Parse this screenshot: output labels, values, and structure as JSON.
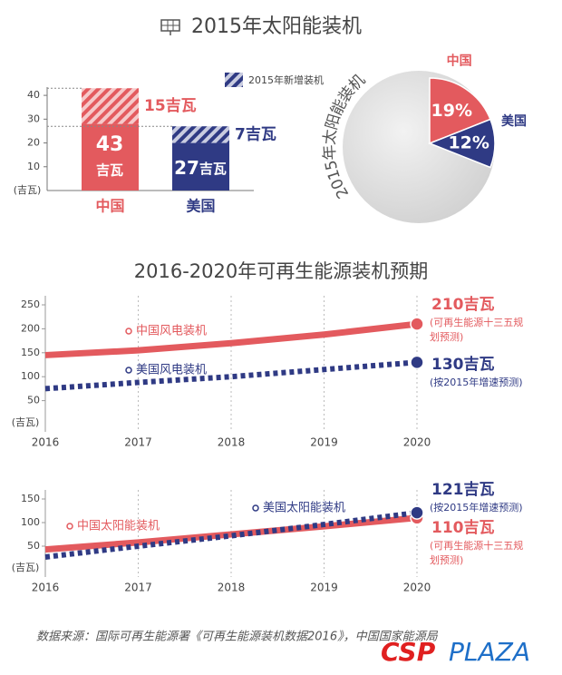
{
  "chart_data": [
    {
      "type": "bar",
      "stacked": true,
      "title": "2015年太阳能装机",
      "categories": [
        "中国",
        "美国"
      ],
      "colors": [
        "#e35a5e",
        "#2f3a84"
      ],
      "series": [
        {
          "values": [
            28,
            20
          ]
        },
        {
          "name": "2015年新增装机",
          "hatched": true,
          "values": [
            15,
            7
          ],
          "value_labels": [
            "15吉瓦",
            "7吉瓦"
          ]
        }
      ],
      "totals": [
        43,
        27
      ],
      "total_unit": "吉瓦",
      "ylabel": "(吉瓦)",
      "ylim": [
        0,
        45
      ],
      "yticks": [
        10,
        20,
        30,
        40
      ]
    },
    {
      "type": "pie",
      "title": "2015年太阳能装机",
      "categories": [
        "中国",
        "美国"
      ],
      "values": [
        19,
        12
      ],
      "value_labels": [
        "19%",
        "12%"
      ],
      "colors": [
        "#e35a5e",
        "#2f3a84"
      ]
    },
    {
      "type": "line",
      "title": "2016-2020年可再生能源装机预期",
      "x": [
        2016,
        2017,
        2018,
        2019,
        2020
      ],
      "xlim": [
        2016,
        2020
      ],
      "xticks": [
        2016,
        2017,
        2018,
        2019,
        2020
      ],
      "ylim": [
        0,
        250
      ],
      "yticks": [
        50,
        100,
        150,
        200,
        250
      ],
      "ylabel": "(吉瓦)",
      "series": [
        {
          "name": "中国风电装机",
          "color": "#e35a5e",
          "style": "solid",
          "values": [
            145,
            155,
            170,
            188,
            210
          ],
          "value_labels": [
            null,
            null,
            null,
            null,
            "210吉瓦"
          ],
          "note": "(可再生能源十三五规划预测)"
        },
        {
          "name": "美国风电装机",
          "color": "#2f3a84",
          "style": "dotted",
          "values": [
            75,
            88,
            100,
            115,
            130
          ],
          "value_labels": [
            null,
            null,
            null,
            null,
            "130吉瓦"
          ],
          "note": "(按2015年增速预测)"
        }
      ]
    },
    {
      "type": "line",
      "x": [
        2016,
        2017,
        2018,
        2019,
        2020
      ],
      "xlim": [
        2016,
        2020
      ],
      "xticks": [
        2016,
        2017,
        2018,
        2019,
        2020
      ],
      "ylim": [
        0,
        150
      ],
      "yticks": [
        50,
        100,
        150
      ],
      "ylabel": "(吉瓦)",
      "series": [
        {
          "name": "中国太阳能装机",
          "color": "#e35a5e",
          "style": "solid",
          "values": [
            43,
            58,
            75,
            92,
            110
          ],
          "value_labels": [
            null,
            null,
            null,
            null,
            "110吉瓦"
          ],
          "note": "(可再生能源十三五规划预测)"
        },
        {
          "name": "美国太阳能装机",
          "color": "#2f3a84",
          "style": "dotted",
          "values": [
            27,
            50,
            72,
            96,
            121
          ],
          "value_labels": [
            null,
            null,
            null,
            null,
            "121吉瓦"
          ],
          "note": "(按2015年增速预测)"
        }
      ]
    }
  ],
  "source": "数据来源：国际可再生能源署《可再生能源装机数据2016》，中国国家能源局",
  "watermark": {
    "brand": "CSP",
    "suffix": "PLAZA"
  }
}
